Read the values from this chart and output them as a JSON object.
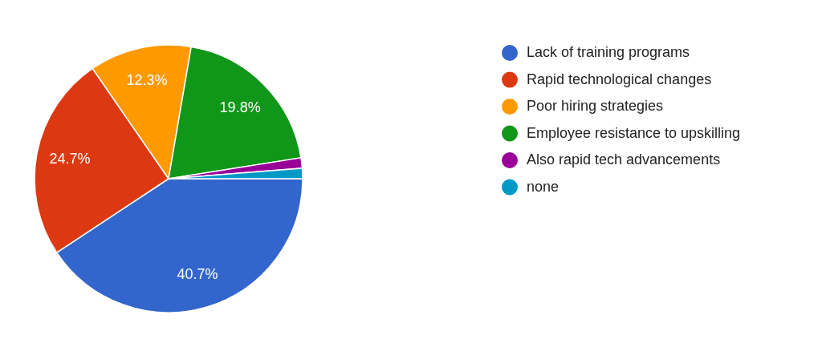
{
  "chart_data": {
    "type": "pie",
    "categories": [
      "Lack of training programs",
      "Rapid technological changes",
      "Poor hiring strategies",
      "Employee resistance to upskilling",
      "Also rapid tech advancements",
      "none"
    ],
    "values": [
      40.7,
      24.7,
      12.3,
      19.8,
      1.25,
      1.25
    ],
    "colors": [
      "#3366cc",
      "#dc3912",
      "#ff9900",
      "#109618",
      "#990099",
      "#0099c6"
    ],
    "value_labels": [
      "40.7%",
      "24.7%",
      "12.3%",
      "19.8%",
      null,
      null
    ],
    "legend": "right"
  }
}
